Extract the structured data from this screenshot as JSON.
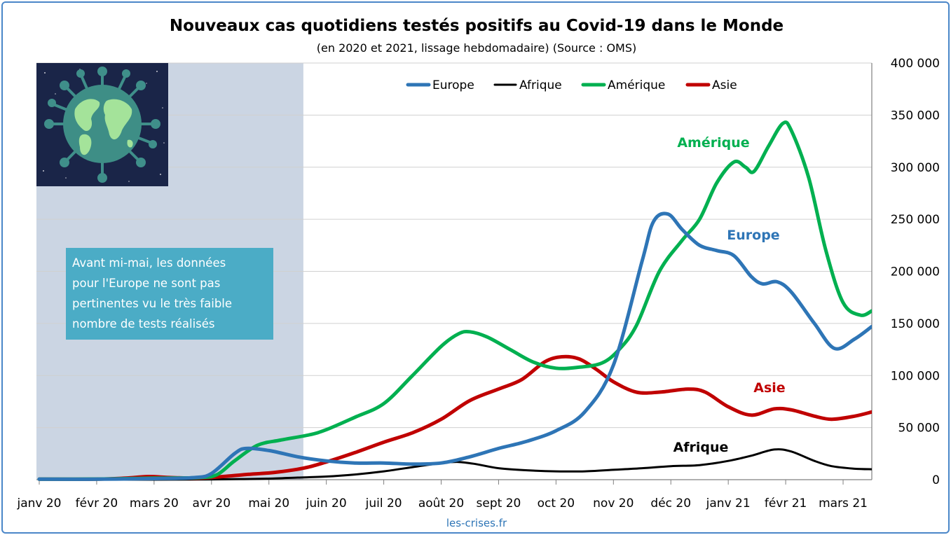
{
  "chart_data": {
    "type": "line",
    "title": "Nouveaux cas quotidiens testés positifs au Covid-19 dans le Monde",
    "subtitle": "(en 2020 et 2021, lissage hebdomadaire) (Source : OMS)",
    "source": "les-crises.fr",
    "x_labels": [
      "janv 20",
      "févr 20",
      "mars 20",
      "avr 20",
      "mai 20",
      "juin 20",
      "juil 20",
      "août 20",
      "sept 20",
      "oct 20",
      "nov 20",
      "déc 20",
      "janv 21",
      "févr 21",
      "mars 21"
    ],
    "y_ticks": [
      "400 000",
      "350 000",
      "300 000",
      "250 000",
      "200 000",
      "150 000",
      "100 000",
      "50 000",
      "0"
    ],
    "ylim": [
      0,
      400000
    ],
    "xlim": [
      0,
      14.5
    ],
    "grid": true,
    "legend_position": "top-center",
    "note": {
      "lines": [
        "Avant mi-mai, les données",
        "pour l'Europe ne sont pas",
        "pertinentes vu le très faible",
        "nombre de tests réalisés"
      ],
      "shaded_until_month": 4.6
    },
    "series": [
      {
        "name": "Europe",
        "label": "Europe",
        "color": "#2e75b6",
        "points": [
          [
            0,
            500
          ],
          [
            1,
            500
          ],
          [
            2,
            1000
          ],
          [
            2.7,
            2000
          ],
          [
            3,
            6000
          ],
          [
            3.4,
            25000
          ],
          [
            3.6,
            30000
          ],
          [
            4,
            28000
          ],
          [
            4.5,
            22000
          ],
          [
            5,
            18000
          ],
          [
            5.5,
            16000
          ],
          [
            6,
            16000
          ],
          [
            6.5,
            15000
          ],
          [
            7,
            16000
          ],
          [
            7.5,
            22000
          ],
          [
            8,
            30000
          ],
          [
            8.5,
            37000
          ],
          [
            9,
            47000
          ],
          [
            9.5,
            65000
          ],
          [
            10,
            110000
          ],
          [
            10.5,
            210000
          ],
          [
            10.7,
            248000
          ],
          [
            10.95,
            255000
          ],
          [
            11.2,
            240000
          ],
          [
            11.5,
            225000
          ],
          [
            11.8,
            220000
          ],
          [
            12.1,
            215000
          ],
          [
            12.4,
            195000
          ],
          [
            12.6,
            188000
          ],
          [
            12.85,
            190000
          ],
          [
            13.1,
            180000
          ],
          [
            13.5,
            150000
          ],
          [
            13.85,
            126000
          ],
          [
            14.2,
            135000
          ],
          [
            14.5,
            147000
          ]
        ]
      },
      {
        "name": "Afrique",
        "label": "Afrique",
        "color": "#000000",
        "points": [
          [
            0,
            0
          ],
          [
            1,
            0
          ],
          [
            2,
            0
          ],
          [
            3,
            300
          ],
          [
            3.5,
            600
          ],
          [
            4,
            1000
          ],
          [
            4.5,
            2000
          ],
          [
            5,
            3000
          ],
          [
            5.5,
            5000
          ],
          [
            6,
            8000
          ],
          [
            6.5,
            12000
          ],
          [
            7,
            16000
          ],
          [
            7.3,
            17000
          ],
          [
            7.6,
            15000
          ],
          [
            8,
            11000
          ],
          [
            8.5,
            9000
          ],
          [
            9,
            8000
          ],
          [
            9.5,
            8000
          ],
          [
            10,
            9500
          ],
          [
            10.5,
            11000
          ],
          [
            11,
            13000
          ],
          [
            11.5,
            14000
          ],
          [
            12,
            18000
          ],
          [
            12.4,
            23000
          ],
          [
            12.8,
            29000
          ],
          [
            13.1,
            27000
          ],
          [
            13.5,
            18000
          ],
          [
            13.8,
            13000
          ],
          [
            14.2,
            10500
          ],
          [
            14.5,
            10000
          ]
        ]
      },
      {
        "name": "Amérique",
        "label": "Amérique",
        "color": "#00b050",
        "points": [
          [
            0,
            500
          ],
          [
            1,
            600
          ],
          [
            2,
            1500
          ],
          [
            2.8,
            2000
          ],
          [
            3.1,
            5000
          ],
          [
            3.4,
            18000
          ],
          [
            3.8,
            33000
          ],
          [
            4.2,
            38000
          ],
          [
            4.7,
            43000
          ],
          [
            5,
            48000
          ],
          [
            5.5,
            60000
          ],
          [
            6,
            73000
          ],
          [
            6.5,
            100000
          ],
          [
            7,
            128000
          ],
          [
            7.3,
            140000
          ],
          [
            7.5,
            142000
          ],
          [
            7.8,
            137000
          ],
          [
            8.2,
            125000
          ],
          [
            8.6,
            113000
          ],
          [
            9,
            107000
          ],
          [
            9.4,
            108000
          ],
          [
            9.8,
            112000
          ],
          [
            10.1,
            125000
          ],
          [
            10.4,
            148000
          ],
          [
            10.8,
            200000
          ],
          [
            11.2,
            230000
          ],
          [
            11.5,
            250000
          ],
          [
            11.8,
            285000
          ],
          [
            12.1,
            305000
          ],
          [
            12.3,
            300000
          ],
          [
            12.45,
            296000
          ],
          [
            12.7,
            320000
          ],
          [
            12.95,
            342000
          ],
          [
            13.1,
            335000
          ],
          [
            13.4,
            290000
          ],
          [
            13.7,
            220000
          ],
          [
            14,
            170000
          ],
          [
            14.3,
            158000
          ],
          [
            14.5,
            162000
          ]
        ]
      },
      {
        "name": "Asie",
        "label": "Asie",
        "color": "#c00000",
        "points": [
          [
            0,
            500
          ],
          [
            1,
            500
          ],
          [
            1.5,
            1500
          ],
          [
            1.9,
            3000
          ],
          [
            2.3,
            2000
          ],
          [
            2.8,
            1500
          ],
          [
            3.2,
            3000
          ],
          [
            3.6,
            5000
          ],
          [
            4.1,
            7000
          ],
          [
            4.6,
            11000
          ],
          [
            5,
            17000
          ],
          [
            5.5,
            26000
          ],
          [
            6,
            36000
          ],
          [
            6.5,
            45000
          ],
          [
            7,
            58000
          ],
          [
            7.5,
            76000
          ],
          [
            8,
            87000
          ],
          [
            8.4,
            96000
          ],
          [
            8.8,
            113000
          ],
          [
            9.1,
            118000
          ],
          [
            9.4,
            116000
          ],
          [
            9.7,
            106000
          ],
          [
            10,
            94000
          ],
          [
            10.4,
            84000
          ],
          [
            10.8,
            84000
          ],
          [
            11.3,
            87000
          ],
          [
            11.6,
            84000
          ],
          [
            12,
            70000
          ],
          [
            12.4,
            62000
          ],
          [
            12.8,
            68000
          ],
          [
            13.1,
            67000
          ],
          [
            13.5,
            61000
          ],
          [
            13.8,
            58000
          ],
          [
            14.2,
            61000
          ],
          [
            14.5,
            65000
          ]
        ]
      }
    ]
  }
}
